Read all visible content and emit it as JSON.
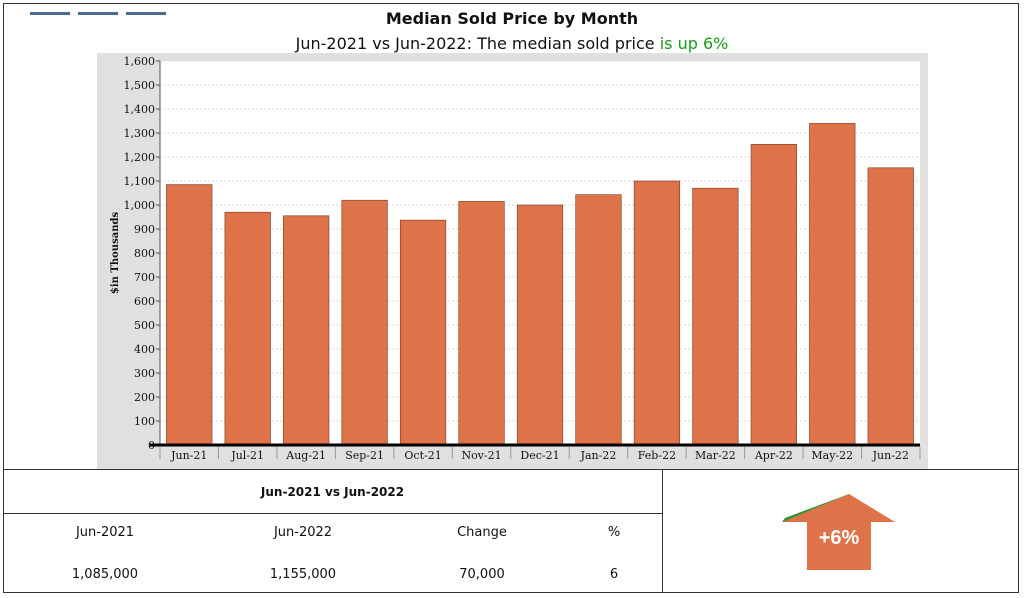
{
  "header": {
    "title": "Median Sold Price by Month",
    "subtitle_prefix": "Jun-2021 vs Jun-2022: The median sold price ",
    "subtitle_highlight": "is up 6%"
  },
  "chart_data": {
    "type": "bar",
    "categories": [
      "Jun-21",
      "Jul-21",
      "Aug-21",
      "Sep-21",
      "Oct-21",
      "Nov-21",
      "Dec-21",
      "Jan-22",
      "Feb-22",
      "Mar-22",
      "Apr-22",
      "May-22",
      "Jun-22"
    ],
    "values": [
      1085,
      970,
      955,
      1020,
      937,
      1015,
      1000,
      1043,
      1100,
      1070,
      1253,
      1340,
      1155
    ],
    "ylabel": "$in Thousands",
    "xlabel": "",
    "ylim": [
      0,
      1600
    ],
    "yticks": [
      0,
      100,
      200,
      300,
      400,
      500,
      600,
      700,
      800,
      900,
      1000,
      1100,
      1200,
      1300,
      1400,
      1500,
      1600
    ],
    "ytick_labels": [
      "0",
      "100",
      "200",
      "300",
      "400",
      "500",
      "600",
      "700",
      "800",
      "900",
      "1,000",
      "1,100",
      "1,200",
      "1,300",
      "1,400",
      "1,500",
      "1,600"
    ],
    "grid": true,
    "bar_color": "#de7248"
  },
  "comparison": {
    "title": "Jun-2021 vs Jun-2022",
    "headers": [
      "Jun-2021",
      "Jun-2022",
      "Change",
      "%"
    ],
    "values": [
      "1,085,000",
      "1,155,000",
      "70,000",
      "6"
    ]
  },
  "indicator": {
    "label": "+6%",
    "direction": "up",
    "color": "#de7248"
  },
  "colors": {
    "accent_green": "#1a9a1a",
    "plot_background": "#e0e0e0"
  }
}
